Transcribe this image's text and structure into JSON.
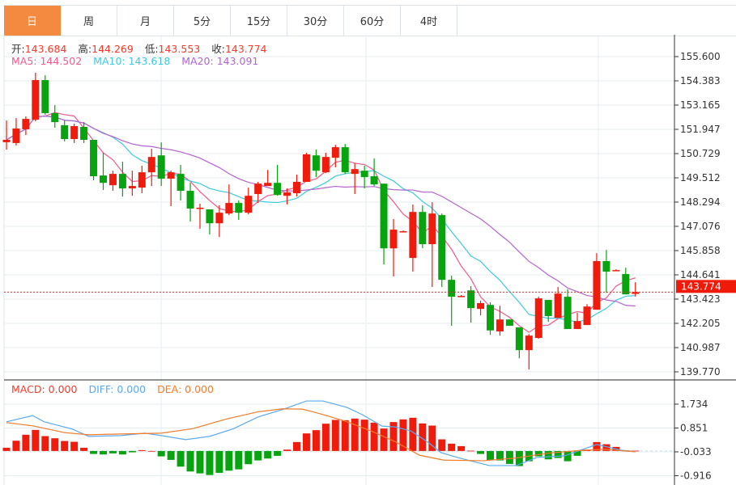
{
  "tabs": [
    "日",
    "周",
    "月",
    "5分",
    "15分",
    "30分",
    "60分",
    "4时"
  ],
  "active_tab": 0,
  "ohlc_info": {
    "open_label": "开:",
    "open": "143.684",
    "high_label": "高:",
    "high": "144.269",
    "low_label": "低:",
    "low": "143.553",
    "close_label": "收:",
    "close": "143.774"
  },
  "ma_info": {
    "ma5": "MA5: 144.502",
    "ma10": "MA10: 143.618",
    "ma20": "MA20: 143.091"
  },
  "macd_info": {
    "macd": "MACD: 0.000",
    "diff": "DIFF: 0.000",
    "dea": "DEA: 0.000"
  },
  "colors": {
    "up": "#ef1b0c",
    "down": "#07a40f",
    "ma5": "#ee5a8c",
    "ma10": "#3ec8dd",
    "ma20": "#b462cf",
    "diff": "#5aaaf0",
    "dea": "#f47b2b",
    "accent": "#f38a3f"
  },
  "chart_data": [
    {
      "type": "candlestick",
      "title": "Daily",
      "ylim": [
        139.77,
        155.6
      ],
      "yticks": [
        "155.600",
        "154.383",
        "153.165",
        "151.947",
        "150.729",
        "149.512",
        "148.294",
        "147.076",
        "145.858",
        "144.641",
        "143.423",
        "142.205",
        "140.987",
        "139.770"
      ],
      "last_price": "143.774",
      "candles_ohlc": [
        [
          151.3,
          152.39,
          150.93,
          151.42
        ],
        [
          151.26,
          152.51,
          151.13,
          151.99
        ],
        [
          151.95,
          152.6,
          151.66,
          152.47
        ],
        [
          152.43,
          154.79,
          152.35,
          154.42
        ],
        [
          154.42,
          154.66,
          152.68,
          152.76
        ],
        [
          152.76,
          153.16,
          152.03,
          152.31
        ],
        [
          152.15,
          152.39,
          151.34,
          151.46
        ],
        [
          151.46,
          152.23,
          151.26,
          152.11
        ],
        [
          152.07,
          152.31,
          151.26,
          151.42
        ],
        [
          151.42,
          151.42,
          149.39,
          149.59
        ],
        [
          149.63,
          150.77,
          148.9,
          149.26
        ],
        [
          149.14,
          149.87,
          148.86,
          149.71
        ],
        [
          149.71,
          150.32,
          148.57,
          148.98
        ],
        [
          148.98,
          149.87,
          148.61,
          149.1
        ],
        [
          149.02,
          150.12,
          148.74,
          149.79
        ],
        [
          149.79,
          150.97,
          149.1,
          150.56
        ],
        [
          150.64,
          151.29,
          149.1,
          149.47
        ],
        [
          149.47,
          149.87,
          148.09,
          149.79
        ],
        [
          149.71,
          150.16,
          148.37,
          148.86
        ],
        [
          148.86,
          149.26,
          147.32,
          147.97
        ],
        [
          147.97,
          148.21,
          146.95,
          148.01
        ],
        [
          147.93,
          147.93,
          146.67,
          147.23
        ],
        [
          147.23,
          148.13,
          146.54,
          147.76
        ],
        [
          147.72,
          149.18,
          147.64,
          148.25
        ],
        [
          148.25,
          148.37,
          147.4,
          147.76
        ],
        [
          147.76,
          149.02,
          147.68,
          148.61
        ],
        [
          148.7,
          149.31,
          148.25,
          149.22
        ],
        [
          149.1,
          149.91,
          149.1,
          149.26
        ],
        [
          149.26,
          150.16,
          148.61,
          148.65
        ],
        [
          148.61,
          148.98,
          148.17,
          148.78
        ],
        [
          148.74,
          149.67,
          148.57,
          149.31
        ],
        [
          149.31,
          150.77,
          149.31,
          150.69
        ],
        [
          150.64,
          150.93,
          149.55,
          149.87
        ],
        [
          149.79,
          150.77,
          149.75,
          150.56
        ],
        [
          150.52,
          151.17,
          150.04,
          151.05
        ],
        [
          151.05,
          151.21,
          149.71,
          149.79
        ],
        [
          149.71,
          150.24,
          148.7,
          149.95
        ],
        [
          149.87,
          150.12,
          148.98,
          149.55
        ],
        [
          149.59,
          150.48,
          149.1,
          149.18
        ],
        [
          149.22,
          149.22,
          145.16,
          145.97
        ],
        [
          145.97,
          147.44,
          144.56,
          146.91
        ],
        [
          146.81,
          146.87,
          146.79,
          146.83
        ],
        [
          145.49,
          148.17,
          144.8,
          147.8
        ],
        [
          147.8,
          148.13,
          145.98,
          146.18
        ],
        [
          146.18,
          148.29,
          144.03,
          147.72
        ],
        [
          147.64,
          147.72,
          144.03,
          144.39
        ],
        [
          144.39,
          144.6,
          142.08,
          143.54
        ],
        [
          143.56,
          143.62,
          143.54,
          143.58
        ],
        [
          143.86,
          144.07,
          142.24,
          142.97
        ],
        [
          142.93,
          143.34,
          142.61,
          143.22
        ],
        [
          143.13,
          143.26,
          141.63,
          141.85
        ],
        [
          141.8,
          143.09,
          141.59,
          142.4
        ],
        [
          142.4,
          142.4,
          142.08,
          142.08
        ],
        [
          142.0,
          142.0,
          140.45,
          140.86
        ],
        [
          140.86,
          141.67,
          139.89,
          141.59
        ],
        [
          141.47,
          143.54,
          141.43,
          143.46
        ],
        [
          143.38,
          143.38,
          142.28,
          142.57
        ],
        [
          142.48,
          144.03,
          142.48,
          143.7
        ],
        [
          143.54,
          143.91,
          141.92,
          141.92
        ],
        [
          141.92,
          142.73,
          141.92,
          142.32
        ],
        [
          142.12,
          143.17,
          142.12,
          143.05
        ],
        [
          142.89,
          145.73,
          142.89,
          145.33
        ],
        [
          145.33,
          145.89,
          143.74,
          144.8
        ],
        [
          144.86,
          144.92,
          144.84,
          144.88
        ],
        [
          144.68,
          145.0,
          143.66,
          143.66
        ],
        [
          143.684,
          144.269,
          143.553,
          143.774
        ]
      ],
      "moving_averages": [
        5,
        10,
        20
      ]
    },
    {
      "type": "bar+line",
      "title": "MACD",
      "ylim": [
        -0.95,
        1.95
      ],
      "yticks": [
        "1.734",
        "0.851",
        "-0.033",
        "-0.916"
      ],
      "histogram": [
        0.12,
        0.38,
        0.6,
        0.78,
        0.55,
        0.47,
        0.37,
        0.34,
        0.12,
        -0.11,
        -0.13,
        -0.09,
        -0.13,
        -0.05,
        0.03,
        0.0,
        -0.2,
        -0.33,
        -0.58,
        -0.76,
        -0.83,
        -0.89,
        -0.81,
        -0.73,
        -0.68,
        -0.49,
        -0.35,
        -0.28,
        -0.18,
        0.05,
        0.33,
        0.65,
        0.77,
        1.01,
        1.15,
        1.14,
        1.2,
        1.16,
        1.05,
        0.83,
        1.07,
        1.17,
        1.23,
        1.02,
        0.94,
        0.43,
        0.27,
        0.18,
        0.01,
        -0.11,
        -0.33,
        -0.35,
        -0.48,
        -0.56,
        -0.38,
        -0.2,
        -0.31,
        -0.26,
        -0.38,
        -0.18,
        0.05,
        0.33,
        0.25,
        0.15,
        0.02,
        0.01
      ],
      "diff": [
        [
          0,
          1.08
        ],
        [
          2.7,
          1.31
        ],
        [
          3.9,
          1.08
        ],
        [
          6.8,
          0.81
        ],
        [
          8.5,
          0.54
        ],
        [
          11.8,
          0.57
        ],
        [
          14.3,
          0.66
        ],
        [
          16,
          0.57
        ],
        [
          18.5,
          0.42
        ],
        [
          21,
          0.54
        ],
        [
          23.5,
          0.83
        ],
        [
          26,
          1.26
        ],
        [
          28.5,
          1.53
        ],
        [
          31,
          1.85
        ],
        [
          32.7,
          1.85
        ],
        [
          35.2,
          1.61
        ],
        [
          36.8,
          1.34
        ],
        [
          38.8,
          0.92
        ],
        [
          40.2,
          0.89
        ],
        [
          41.8,
          0.74
        ],
        [
          43.5,
          0.34
        ],
        [
          44.9,
          -0.06
        ],
        [
          46.8,
          -0.26
        ],
        [
          49.9,
          -0.54
        ],
        [
          52.7,
          -0.54
        ],
        [
          54.8,
          -0.24
        ],
        [
          57.7,
          -0.18
        ],
        [
          59.3,
          0.03
        ],
        [
          61,
          0.24
        ],
        [
          63.5,
          0.03
        ],
        [
          65,
          -0.03
        ]
      ],
      "dea": [
        [
          0,
          1.05
        ],
        [
          2.7,
          0.93
        ],
        [
          6,
          0.68
        ],
        [
          8.5,
          0.6
        ],
        [
          11.8,
          0.63
        ],
        [
          16,
          0.66
        ],
        [
          19.3,
          0.83
        ],
        [
          22.7,
          1.18
        ],
        [
          26,
          1.45
        ],
        [
          28.5,
          1.56
        ],
        [
          30.6,
          1.55
        ],
        [
          32.7,
          1.35
        ],
        [
          35.2,
          1.08
        ],
        [
          37.7,
          0.74
        ],
        [
          40.2,
          0.34
        ],
        [
          42.7,
          -0.16
        ],
        [
          45.2,
          -0.34
        ],
        [
          49.3,
          -0.36
        ],
        [
          52.7,
          -0.26
        ],
        [
          56,
          -0.08
        ],
        [
          59.3,
          0.02
        ],
        [
          61.8,
          0.06
        ],
        [
          65,
          -0.03
        ]
      ]
    }
  ]
}
